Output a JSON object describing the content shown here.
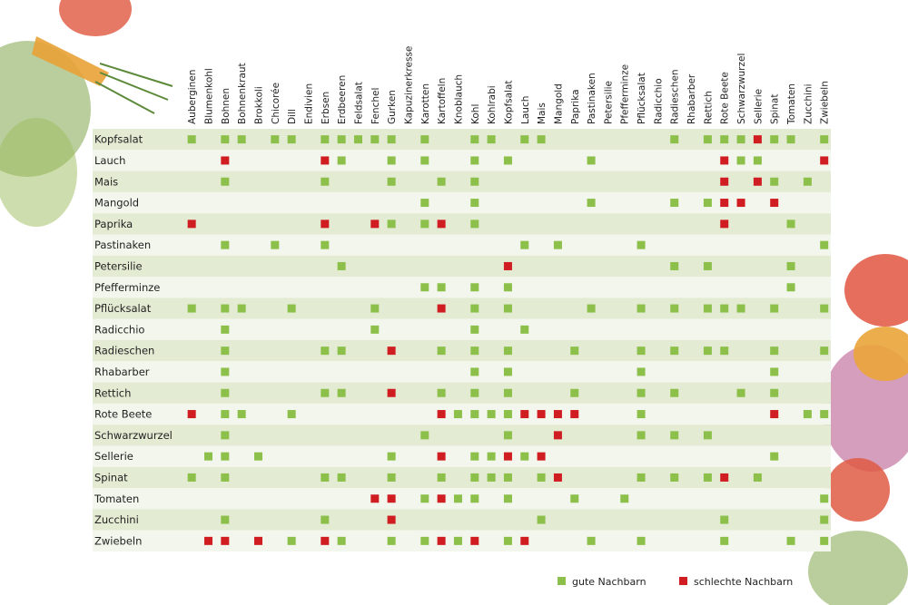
{
  "columns": [
    "Auberginen",
    "Blumenkohl",
    "Bohnen",
    "Bohnenkraut",
    "Brokkoli",
    "Chicorée",
    "Dill",
    "Endivien",
    "Erbsen",
    "Erdbeeren",
    "Feldsalat",
    "Fenchel",
    "Gurken",
    "Kapuzinerkresse",
    "Karotten",
    "Kartoffeln",
    "Knoblauch",
    "Kohl",
    "Kohlrabi",
    "Kopfsalat",
    "Lauch",
    "Mais",
    "Mangold",
    "Paprika",
    "Pastinaken",
    "Petersilie",
    "Pfefferminze",
    "Pflücksalat",
    "Radicchio",
    "Radieschen",
    "Rhabarber",
    "Rettich",
    "Rote Beete",
    "Schwarzwurzel",
    "Sellerie",
    "Spinat",
    "Tomaten",
    "Zucchini",
    "Zwiebeln"
  ],
  "rows": [
    {
      "name": "Kopfsalat",
      "cells": [
        1,
        0,
        1,
        1,
        0,
        1,
        1,
        0,
        1,
        1,
        1,
        1,
        1,
        0,
        1,
        0,
        0,
        1,
        1,
        0,
        1,
        1,
        0,
        0,
        0,
        0,
        0,
        0,
        0,
        1,
        0,
        1,
        1,
        1,
        -1,
        1,
        1,
        0,
        1
      ]
    },
    {
      "name": "Lauch",
      "cells": [
        0,
        0,
        -1,
        0,
        0,
        0,
        0,
        0,
        -1,
        1,
        0,
        0,
        1,
        0,
        1,
        0,
        0,
        1,
        0,
        1,
        0,
        0,
        0,
        0,
        1,
        0,
        0,
        0,
        0,
        0,
        0,
        0,
        -1,
        1,
        1,
        0,
        0,
        0,
        -1
      ]
    },
    {
      "name": "Mais",
      "cells": [
        0,
        0,
        1,
        0,
        0,
        0,
        0,
        0,
        1,
        0,
        0,
        0,
        1,
        0,
        0,
        1,
        0,
        1,
        0,
        0,
        0,
        0,
        0,
        0,
        0,
        0,
        0,
        0,
        0,
        0,
        0,
        0,
        -1,
        0,
        -1,
        1,
        0,
        1,
        0
      ]
    },
    {
      "name": "Mangold",
      "cells": [
        0,
        0,
        0,
        0,
        0,
        0,
        0,
        0,
        0,
        0,
        0,
        0,
        0,
        0,
        1,
        0,
        0,
        1,
        0,
        0,
        0,
        0,
        0,
        0,
        1,
        0,
        0,
        0,
        0,
        1,
        0,
        1,
        -1,
        -1,
        0,
        -1,
        0,
        0,
        0
      ]
    },
    {
      "name": "Paprika",
      "cells": [
        -1,
        0,
        0,
        0,
        0,
        0,
        0,
        0,
        -1,
        0,
        0,
        -1,
        1,
        0,
        1,
        -1,
        0,
        1,
        0,
        0,
        0,
        0,
        0,
        0,
        0,
        0,
        0,
        0,
        0,
        0,
        0,
        0,
        -1,
        0,
        0,
        0,
        1,
        0,
        0
      ]
    },
    {
      "name": "Pastinaken",
      "cells": [
        0,
        0,
        1,
        0,
        0,
        1,
        0,
        0,
        1,
        0,
        0,
        0,
        0,
        0,
        0,
        0,
        0,
        0,
        0,
        0,
        1,
        0,
        1,
        0,
        0,
        0,
        0,
        1,
        0,
        0,
        0,
        0,
        0,
        0,
        0,
        0,
        0,
        0,
        1
      ]
    },
    {
      "name": "Petersilie",
      "cells": [
        0,
        0,
        0,
        0,
        0,
        0,
        0,
        0,
        0,
        1,
        0,
        0,
        0,
        0,
        0,
        0,
        0,
        0,
        0,
        -1,
        0,
        0,
        0,
        0,
        0,
        0,
        0,
        0,
        0,
        1,
        0,
        1,
        0,
        0,
        0,
        0,
        1,
        0,
        0
      ]
    },
    {
      "name": "Pfefferminze",
      "cells": [
        0,
        0,
        0,
        0,
        0,
        0,
        0,
        0,
        0,
        0,
        0,
        0,
        0,
        0,
        1,
        1,
        0,
        1,
        0,
        1,
        0,
        0,
        0,
        0,
        0,
        0,
        0,
        0,
        0,
        0,
        0,
        0,
        0,
        0,
        0,
        0,
        1,
        0,
        0
      ]
    },
    {
      "name": "Pflücksalat",
      "cells": [
        1,
        0,
        1,
        1,
        0,
        0,
        1,
        0,
        0,
        0,
        0,
        1,
        0,
        0,
        0,
        -1,
        0,
        1,
        0,
        1,
        0,
        0,
        0,
        0,
        1,
        0,
        0,
        1,
        0,
        1,
        0,
        1,
        1,
        1,
        0,
        1,
        0,
        0,
        1
      ]
    },
    {
      "name": "Radicchio",
      "cells": [
        0,
        0,
        1,
        0,
        0,
        0,
        0,
        0,
        0,
        0,
        0,
        1,
        0,
        0,
        0,
        0,
        0,
        1,
        0,
        0,
        1,
        0,
        0,
        0,
        0,
        0,
        0,
        0,
        0,
        0,
        0,
        0,
        0,
        0,
        0,
        0,
        0,
        0,
        0
      ]
    },
    {
      "name": "Radieschen",
      "cells": [
        0,
        0,
        1,
        0,
        0,
        0,
        0,
        0,
        1,
        1,
        0,
        0,
        -1,
        0,
        0,
        1,
        0,
        1,
        0,
        1,
        0,
        0,
        0,
        1,
        0,
        0,
        0,
        1,
        0,
        1,
        0,
        1,
        1,
        0,
        0,
        1,
        0,
        0,
        1
      ]
    },
    {
      "name": "Rhabarber",
      "cells": [
        0,
        0,
        1,
        0,
        0,
        0,
        0,
        0,
        0,
        0,
        0,
        0,
        0,
        0,
        0,
        0,
        0,
        1,
        0,
        1,
        0,
        0,
        0,
        0,
        0,
        0,
        0,
        1,
        0,
        0,
        0,
        0,
        0,
        0,
        0,
        1,
        0,
        0,
        0
      ]
    },
    {
      "name": "Rettich",
      "cells": [
        0,
        0,
        1,
        0,
        0,
        0,
        0,
        0,
        1,
        1,
        0,
        0,
        -1,
        0,
        0,
        1,
        0,
        1,
        0,
        1,
        0,
        0,
        0,
        1,
        0,
        0,
        0,
        1,
        0,
        1,
        0,
        0,
        0,
        1,
        0,
        1,
        0,
        0,
        0
      ]
    },
    {
      "name": "Rote Beete",
      "cells": [
        -1,
        0,
        1,
        1,
        0,
        0,
        1,
        0,
        0,
        0,
        0,
        0,
        0,
        0,
        0,
        -1,
        1,
        1,
        1,
        1,
        -1,
        -1,
        -1,
        -1,
        0,
        0,
        0,
        1,
        0,
        0,
        0,
        0,
        0,
        0,
        0,
        -1,
        0,
        1,
        1
      ]
    },
    {
      "name": "Schwarzwurzel",
      "cells": [
        0,
        0,
        1,
        0,
        0,
        0,
        0,
        0,
        0,
        0,
        0,
        0,
        0,
        0,
        1,
        0,
        0,
        0,
        0,
        1,
        0,
        0,
        -1,
        0,
        0,
        0,
        0,
        1,
        0,
        1,
        0,
        1,
        0,
        0,
        0,
        0,
        0,
        0,
        0
      ]
    },
    {
      "name": "Sellerie",
      "cells": [
        0,
        1,
        1,
        0,
        1,
        0,
        0,
        0,
        0,
        0,
        0,
        0,
        1,
        0,
        0,
        -1,
        0,
        1,
        1,
        -1,
        1,
        -1,
        0,
        0,
        0,
        0,
        0,
        0,
        0,
        0,
        0,
        0,
        0,
        0,
        0,
        1,
        0,
        0,
        0
      ]
    },
    {
      "name": "Spinat",
      "cells": [
        1,
        0,
        1,
        0,
        0,
        0,
        0,
        0,
        1,
        1,
        0,
        0,
        1,
        0,
        0,
        1,
        0,
        1,
        1,
        1,
        0,
        1,
        -1,
        0,
        0,
        0,
        0,
        1,
        0,
        1,
        0,
        1,
        -1,
        0,
        1,
        0,
        0,
        0,
        0
      ]
    },
    {
      "name": "Tomaten",
      "cells": [
        0,
        0,
        0,
        0,
        0,
        0,
        0,
        0,
        0,
        0,
        0,
        -1,
        -1,
        0,
        1,
        -1,
        1,
        1,
        0,
        1,
        0,
        0,
        0,
        1,
        0,
        0,
        1,
        0,
        0,
        0,
        0,
        0,
        0,
        0,
        0,
        0,
        0,
        0,
        1
      ]
    },
    {
      "name": "Zucchini",
      "cells": [
        0,
        0,
        1,
        0,
        0,
        0,
        0,
        0,
        1,
        0,
        0,
        0,
        -1,
        0,
        0,
        0,
        0,
        0,
        0,
        0,
        0,
        1,
        0,
        0,
        0,
        0,
        0,
        0,
        0,
        0,
        0,
        0,
        1,
        0,
        0,
        0,
        0,
        0,
        1
      ]
    },
    {
      "name": "Zwiebeln",
      "cells": [
        0,
        -1,
        -1,
        0,
        -1,
        0,
        1,
        0,
        -1,
        1,
        0,
        0,
        1,
        0,
        1,
        -1,
        1,
        -1,
        0,
        1,
        -1,
        0,
        0,
        0,
        1,
        0,
        0,
        1,
        0,
        0,
        0,
        0,
        1,
        0,
        0,
        0,
        1,
        0,
        1
      ]
    }
  ],
  "legend": [
    {
      "label": "gute Nachbarn",
      "value": 1,
      "color": "#8cc04a"
    },
    {
      "label": "schlechte Nachbarn",
      "value": -1,
      "color": "#d01d22"
    }
  ]
}
